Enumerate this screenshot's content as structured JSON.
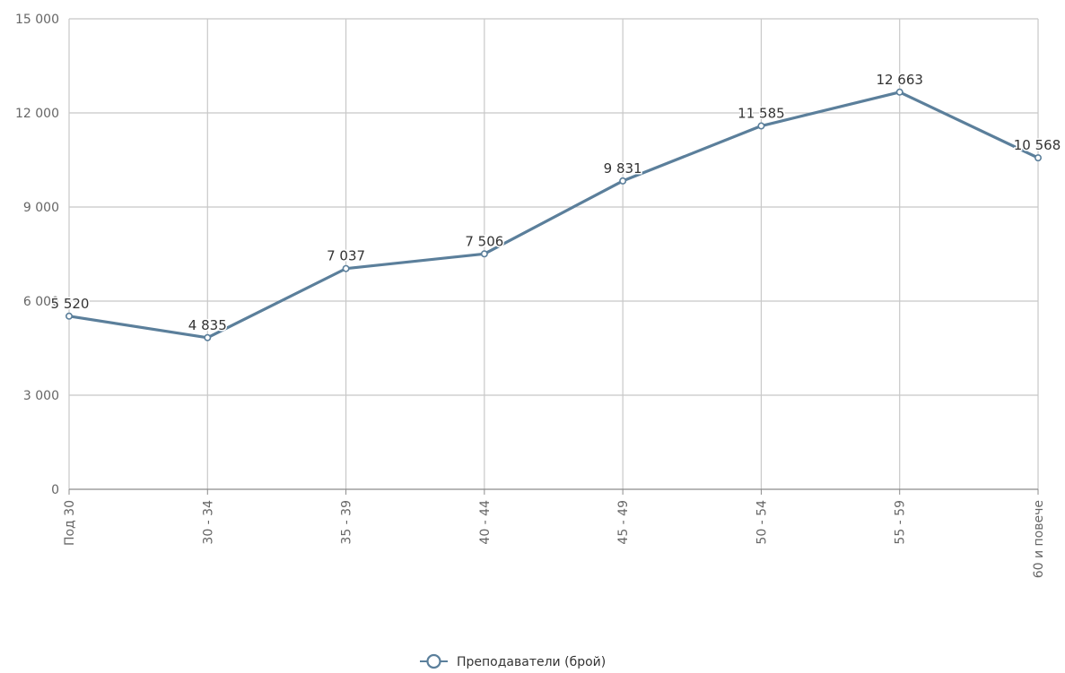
{
  "chart_data": {
    "type": "line",
    "categories": [
      "Под 30",
      "30 - 34",
      "35 - 39",
      "40 - 44",
      "45 - 49",
      "50 - 54",
      "55 - 59",
      "60 и повече"
    ],
    "series": [
      {
        "name": "Преподаватели (брой)",
        "values": [
          5520,
          4835,
          7037,
          7506,
          9831,
          11585,
          12663,
          10568
        ],
        "labels": [
          "5 520",
          "4 835",
          "7 037",
          "7 506",
          "9 831",
          "11 585",
          "12 663",
          "10 568"
        ],
        "color": "#5b7f9b"
      }
    ],
    "ylim": [
      0,
      15000
    ],
    "yticks": [
      0,
      3000,
      6000,
      9000,
      12000,
      15000
    ],
    "ytick_labels": [
      "0",
      "3 000",
      "6 000",
      "9 000",
      "12 000",
      "15 000"
    ],
    "grid": true,
    "legend_position": "bottom-center",
    "colors": {
      "grid": "#c8c8c8",
      "axis": "#8c8c8c",
      "tick_text": "#666666",
      "label_text": "#333333"
    }
  }
}
